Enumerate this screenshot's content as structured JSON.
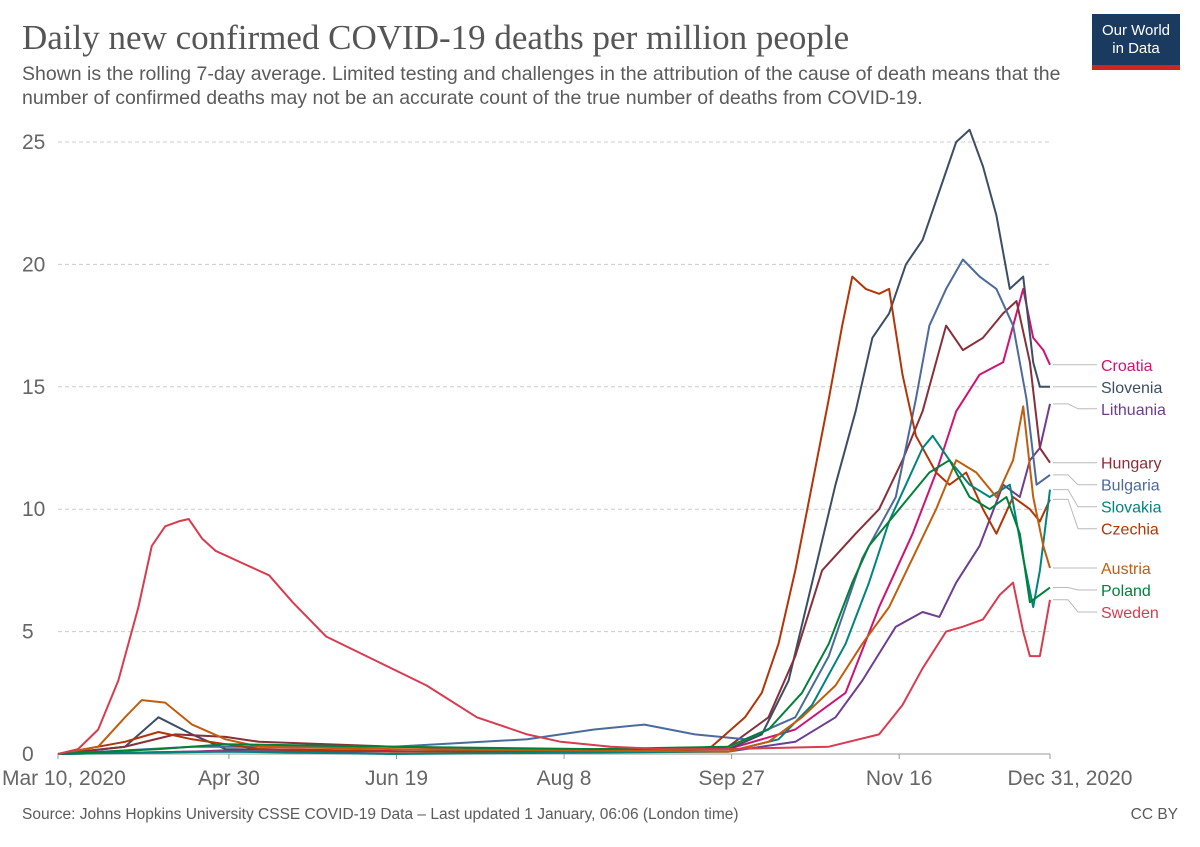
{
  "header": {
    "title": "Daily new confirmed COVID-19 deaths per million people",
    "subtitle": "Shown is the rolling 7-day average. Limited testing and challenges in the attribution of the cause of death means that the number of confirmed deaths may not be an accurate count of the true number of deaths from COVID-19.",
    "logo_line1": "Our World",
    "logo_line2": "in Data"
  },
  "footer": {
    "source": "Source: Johns Hopkins University CSSE COVID-19 Data – Last updated 1 January, 06:06 (London time)",
    "license": "CC BY"
  },
  "colors": {
    "logo_bg": "#1a3a60",
    "logo_bar": "#ce261e",
    "grid": "#cccccc",
    "axis": "#999999"
  },
  "chart_data": {
    "type": "line",
    "title": "Daily new confirmed COVID-19 deaths per million people",
    "xlabel": "",
    "ylabel": "",
    "x_units": "days since Mar 10, 2020",
    "xlim": [
      0,
      296
    ],
    "ylim": [
      0,
      25.5
    ],
    "yticks": [
      0,
      5,
      10,
      15,
      20,
      25
    ],
    "xticks": [
      {
        "day": 0,
        "label": "Mar 10, 2020"
      },
      {
        "day": 51,
        "label": "Apr 30"
      },
      {
        "day": 101,
        "label": "Jun 19"
      },
      {
        "day": 151,
        "label": "Aug 8"
      },
      {
        "day": 201,
        "label": "Sep 27"
      },
      {
        "day": 251,
        "label": "Nov 16"
      },
      {
        "day": 296,
        "label": "Dec 31, 2020"
      }
    ],
    "grid": true,
    "legend": "right-end labels",
    "series": [
      {
        "name": "Croatia",
        "color": "#d01373",
        "final": 15.9,
        "points": [
          [
            0,
            0
          ],
          [
            40,
            0.1
          ],
          [
            60,
            0.2
          ],
          [
            110,
            0.1
          ],
          [
            160,
            0.2
          ],
          [
            200,
            0.2
          ],
          [
            220,
            1.0
          ],
          [
            235,
            2.5
          ],
          [
            245,
            6
          ],
          [
            255,
            9
          ],
          [
            262,
            11.5
          ],
          [
            268,
            14
          ],
          [
            275,
            15.5
          ],
          [
            282,
            16
          ],
          [
            288,
            19
          ],
          [
            291,
            17
          ],
          [
            294,
            16.5
          ],
          [
            296,
            15.9
          ]
        ]
      },
      {
        "name": "Slovenia",
        "color": "#3c4e66",
        "final": 15.0,
        "points": [
          [
            0,
            0
          ],
          [
            20,
            0.3
          ],
          [
            30,
            1.5
          ],
          [
            40,
            0.8
          ],
          [
            50,
            0.2
          ],
          [
            100,
            0.1
          ],
          [
            200,
            0.2
          ],
          [
            210,
            0.8
          ],
          [
            218,
            3
          ],
          [
            225,
            7
          ],
          [
            232,
            11
          ],
          [
            238,
            14
          ],
          [
            243,
            17
          ],
          [
            248,
            18
          ],
          [
            253,
            20
          ],
          [
            258,
            21
          ],
          [
            263,
            23
          ],
          [
            268,
            25
          ],
          [
            272,
            25.5
          ],
          [
            276,
            24
          ],
          [
            280,
            22
          ],
          [
            284,
            19
          ],
          [
            288,
            19.5
          ],
          [
            291,
            16
          ],
          [
            293,
            15
          ],
          [
            296,
            15.0
          ]
        ]
      },
      {
        "name": "Lithuania",
        "color": "#6d3e91",
        "final": 14.3,
        "points": [
          [
            0,
            0
          ],
          [
            40,
            0.1
          ],
          [
            100,
            0.1
          ],
          [
            200,
            0.1
          ],
          [
            220,
            0.5
          ],
          [
            232,
            1.5
          ],
          [
            240,
            3
          ],
          [
            250,
            5.2
          ],
          [
            258,
            5.8
          ],
          [
            263,
            5.6
          ],
          [
            268,
            7
          ],
          [
            275,
            8.5
          ],
          [
            282,
            11
          ],
          [
            287,
            10.5
          ],
          [
            290,
            12
          ],
          [
            293,
            12.5
          ],
          [
            296,
            14.3
          ]
        ]
      },
      {
        "name": "Hungary",
        "color": "#883039",
        "final": 11.9,
        "points": [
          [
            0,
            0
          ],
          [
            20,
            0.3
          ],
          [
            35,
            0.8
          ],
          [
            50,
            0.7
          ],
          [
            60,
            0.5
          ],
          [
            100,
            0.3
          ],
          [
            180,
            0.1
          ],
          [
            200,
            0.3
          ],
          [
            212,
            1.5
          ],
          [
            220,
            4
          ],
          [
            228,
            7.5
          ],
          [
            238,
            9
          ],
          [
            245,
            10
          ],
          [
            252,
            12
          ],
          [
            258,
            14
          ],
          [
            265,
            17.5
          ],
          [
            270,
            16.5
          ],
          [
            276,
            17
          ],
          [
            282,
            18
          ],
          [
            286,
            18.5
          ],
          [
            290,
            16
          ],
          [
            293,
            12.5
          ],
          [
            296,
            11.9
          ]
        ]
      },
      {
        "name": "Bulgaria",
        "color": "#4c6a9c",
        "final": 11.4,
        "points": [
          [
            0,
            0
          ],
          [
            40,
            0.3
          ],
          [
            100,
            0.3
          ],
          [
            140,
            0.6
          ],
          [
            160,
            1.0
          ],
          [
            175,
            1.2
          ],
          [
            190,
            0.8
          ],
          [
            205,
            0.6
          ],
          [
            220,
            1.5
          ],
          [
            230,
            4
          ],
          [
            240,
            8
          ],
          [
            250,
            10.5
          ],
          [
            256,
            14.5
          ],
          [
            260,
            17.5
          ],
          [
            265,
            19
          ],
          [
            270,
            20.2
          ],
          [
            275,
            19.5
          ],
          [
            280,
            19
          ],
          [
            285,
            17.5
          ],
          [
            289,
            14.5
          ],
          [
            292,
            11
          ],
          [
            296,
            11.4
          ]
        ]
      },
      {
        "name": "Czechia",
        "color": "#b13507",
        "final": 10.4,
        "points": [
          [
            0,
            0
          ],
          [
            20,
            0.5
          ],
          [
            30,
            0.9
          ],
          [
            40,
            0.6
          ],
          [
            60,
            0.2
          ],
          [
            100,
            0.1
          ],
          [
            180,
            0.1
          ],
          [
            195,
            0.3
          ],
          [
            205,
            1.5
          ],
          [
            210,
            2.5
          ],
          [
            215,
            4.5
          ],
          [
            220,
            7.5
          ],
          [
            225,
            11
          ],
          [
            230,
            14.5
          ],
          [
            234,
            17.5
          ],
          [
            237,
            19.5
          ],
          [
            241,
            19
          ],
          [
            245,
            18.8
          ],
          [
            248,
            19
          ],
          [
            252,
            15.5
          ],
          [
            256,
            13
          ],
          [
            262,
            11.5
          ],
          [
            266,
            11
          ],
          [
            271,
            11.5
          ],
          [
            276,
            10
          ],
          [
            280,
            9
          ],
          [
            285,
            10.5
          ],
          [
            290,
            10
          ],
          [
            293,
            9.5
          ],
          [
            296,
            10.4
          ]
        ]
      },
      {
        "name": "Slovakia",
        "color": "#00847e",
        "final": 10.8,
        "points": [
          [
            0,
            0
          ],
          [
            50,
            0.1
          ],
          [
            100,
            0
          ],
          [
            200,
            0.1
          ],
          [
            215,
            0.6
          ],
          [
            225,
            2
          ],
          [
            235,
            4.5
          ],
          [
            242,
            7
          ],
          [
            248,
            9.5
          ],
          [
            253,
            11
          ],
          [
            258,
            12.5
          ],
          [
            261,
            13
          ],
          [
            266,
            12
          ],
          [
            272,
            11
          ],
          [
            278,
            10.5
          ],
          [
            284,
            11
          ],
          [
            288,
            8
          ],
          [
            291,
            6
          ],
          [
            293,
            7.5
          ],
          [
            296,
            10.8
          ]
        ]
      },
      {
        "name": "Austria",
        "color": "#c15d0e",
        "final": 7.6,
        "points": [
          [
            0,
            0
          ],
          [
            12,
            0.3
          ],
          [
            20,
            1.5
          ],
          [
            25,
            2.2
          ],
          [
            32,
            2.1
          ],
          [
            40,
            1.2
          ],
          [
            50,
            0.6
          ],
          [
            60,
            0.3
          ],
          [
            100,
            0.2
          ],
          [
            200,
            0.1
          ],
          [
            212,
            0.5
          ],
          [
            222,
            1.5
          ],
          [
            232,
            2.8
          ],
          [
            240,
            4.5
          ],
          [
            248,
            6
          ],
          [
            255,
            8
          ],
          [
            262,
            10
          ],
          [
            268,
            12
          ],
          [
            274,
            11.5
          ],
          [
            280,
            10.5
          ],
          [
            285,
            12
          ],
          [
            288,
            14.2
          ],
          [
            291,
            10.5
          ],
          [
            294,
            8.5
          ],
          [
            296,
            7.6
          ]
        ]
      },
      {
        "name": "Poland",
        "color": "#00813a",
        "final": 6.8,
        "points": [
          [
            0,
            0
          ],
          [
            30,
            0.2
          ],
          [
            50,
            0.4
          ],
          [
            100,
            0.3
          ],
          [
            160,
            0.2
          ],
          [
            200,
            0.3
          ],
          [
            212,
            1
          ],
          [
            222,
            2.5
          ],
          [
            230,
            4.5
          ],
          [
            237,
            7
          ],
          [
            242,
            8.5
          ],
          [
            248,
            9.5
          ],
          [
            254,
            10.5
          ],
          [
            260,
            11.5
          ],
          [
            266,
            12
          ],
          [
            272,
            10.5
          ],
          [
            278,
            10
          ],
          [
            283,
            10.5
          ],
          [
            287,
            9
          ],
          [
            290,
            6.2
          ],
          [
            293,
            6.5
          ],
          [
            296,
            6.8
          ]
        ]
      },
      {
        "name": "Sweden",
        "color": "#d73c50",
        "final": 6.3,
        "points": [
          [
            0,
            0
          ],
          [
            6,
            0.2
          ],
          [
            12,
            1
          ],
          [
            18,
            3
          ],
          [
            24,
            6
          ],
          [
            28,
            8.5
          ],
          [
            32,
            9.3
          ],
          [
            36,
            9.5
          ],
          [
            39,
            9.6
          ],
          [
            43,
            8.8
          ],
          [
            47,
            8.3
          ],
          [
            55,
            7.8
          ],
          [
            63,
            7.3
          ],
          [
            70,
            6.2
          ],
          [
            80,
            4.8
          ],
          [
            95,
            3.8
          ],
          [
            110,
            2.8
          ],
          [
            125,
            1.5
          ],
          [
            140,
            0.8
          ],
          [
            150,
            0.5
          ],
          [
            165,
            0.3
          ],
          [
            180,
            0.2
          ],
          [
            200,
            0.2
          ],
          [
            230,
            0.3
          ],
          [
            245,
            0.8
          ],
          [
            252,
            2
          ],
          [
            258,
            3.5
          ],
          [
            265,
            5
          ],
          [
            270,
            5.2
          ],
          [
            276,
            5.5
          ],
          [
            281,
            6.5
          ],
          [
            285,
            7
          ],
          [
            288,
            5
          ],
          [
            290,
            4
          ],
          [
            293,
            4
          ],
          [
            296,
            6.3
          ]
        ]
      }
    ]
  }
}
